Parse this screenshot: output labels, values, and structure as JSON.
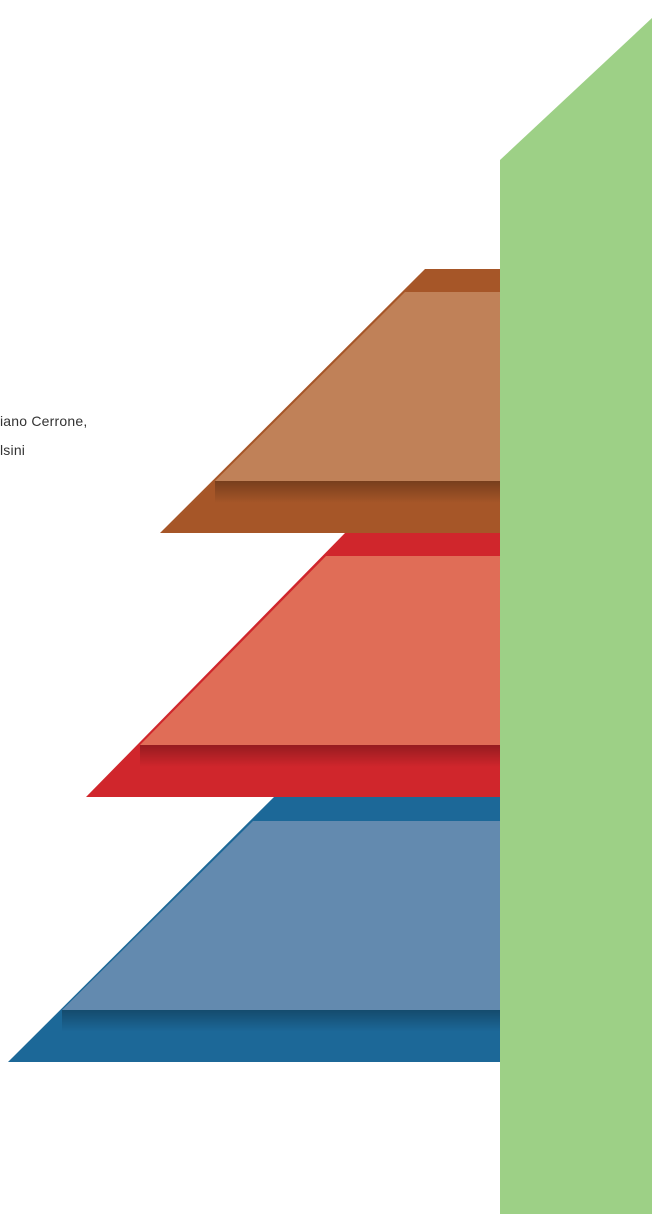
{
  "caption": {
    "line_1": "iano Cerrone,",
    "line_2": "lsini"
  },
  "colors": {
    "background": "#ffffff",
    "green_panel": "#9dd086",
    "top_tier_face": "#c08158",
    "top_tier_band": "#a65628",
    "middle_tier_face": "#e06d57",
    "middle_tier_band": "#d0262c",
    "bottom_tier_face": "#638aaf",
    "bottom_tier_band": "#1c6898",
    "caption_text": "#333333"
  },
  "tiers": [
    {
      "name": "top-tier",
      "face_color": "#c08158",
      "band_color": "#a65628"
    },
    {
      "name": "middle-tier",
      "face_color": "#e06d57",
      "band_color": "#d0262c"
    },
    {
      "name": "bottom-tier",
      "face_color": "#638aaf",
      "band_color": "#1c6898"
    }
  ]
}
